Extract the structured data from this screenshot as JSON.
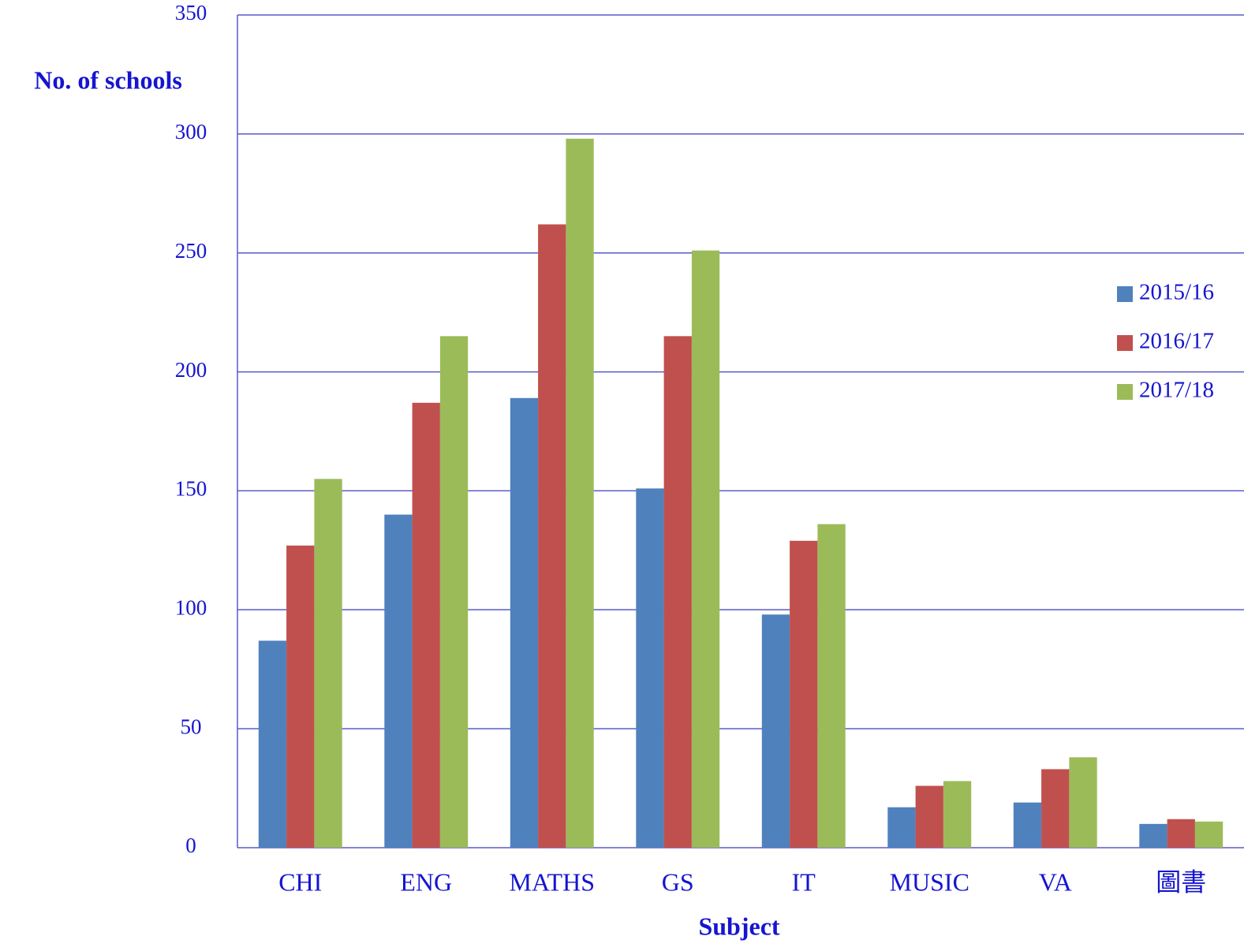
{
  "chart_data": {
    "type": "bar",
    "x_label": "Subject",
    "y_label": "No. of schools",
    "categories": [
      "CHI",
      "ENG",
      "MATHS",
      "GS",
      "IT",
      "MUSIC",
      "VA",
      "圖書"
    ],
    "series": [
      {
        "name": "2015/16",
        "color": "#4f81bd",
        "values": [
          87,
          140,
          189,
          151,
          98,
          17,
          19,
          10
        ]
      },
      {
        "name": "2016/17",
        "color": "#c0504d",
        "values": [
          127,
          187,
          262,
          215,
          129,
          26,
          33,
          12
        ]
      },
      {
        "name": "2017/18",
        "color": "#9bbb59",
        "values": [
          155,
          215,
          298,
          251,
          136,
          28,
          38,
          11
        ]
      }
    ],
    "ylim": [
      0,
      350
    ],
    "yticks": [
      0,
      50,
      100,
      150,
      200,
      250,
      300,
      350
    ],
    "grid": true,
    "legend": "right"
  }
}
